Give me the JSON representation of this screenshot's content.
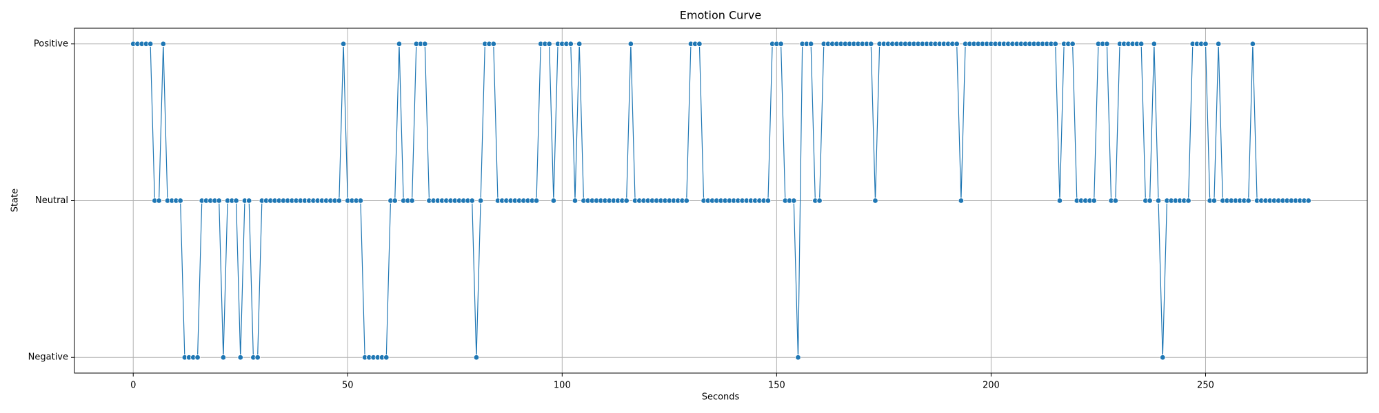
{
  "chart_data": {
    "type": "line",
    "title": "Emotion Curve",
    "x_label": "Seconds",
    "y_label": "State",
    "x": [
      0,
      1,
      2,
      3,
      4,
      5,
      6,
      7,
      8,
      9,
      10,
      11,
      12,
      13,
      14,
      15,
      16,
      17,
      18,
      19,
      20,
      21,
      22,
      23,
      24,
      25,
      26,
      27,
      28,
      29,
      30,
      31,
      32,
      33,
      34,
      35,
      36,
      37,
      38,
      39,
      40,
      41,
      42,
      43,
      44,
      45,
      46,
      47,
      48,
      49,
      50,
      51,
      52,
      53,
      54,
      55,
      56,
      57,
      58,
      59,
      60,
      61,
      62,
      63,
      64,
      65,
      66,
      67,
      68,
      69,
      70,
      71,
      72,
      73,
      74,
      75,
      76,
      77,
      78,
      79,
      80,
      81,
      82,
      83,
      84,
      85,
      86,
      87,
      88,
      89,
      90,
      91,
      92,
      93,
      94,
      95,
      96,
      97,
      98,
      99,
      100,
      101,
      102,
      103,
      104,
      105,
      106,
      107,
      108,
      109,
      110,
      111,
      112,
      113,
      114,
      115,
      116,
      117,
      118,
      119,
      120,
      121,
      122,
      123,
      124,
      125,
      126,
      127,
      128,
      129,
      130,
      131,
      132,
      133,
      134,
      135,
      136,
      137,
      138,
      139,
      140,
      141,
      142,
      143,
      144,
      145,
      146,
      147,
      148,
      149,
      150,
      151,
      152,
      153,
      154,
      155,
      156,
      157,
      158,
      159,
      160,
      161,
      162,
      163,
      164,
      165,
      166,
      167,
      168,
      169,
      170,
      171,
      172,
      173,
      174,
      175,
      176,
      177,
      178,
      179,
      180,
      181,
      182,
      183,
      184,
      185,
      186,
      187,
      188,
      189,
      190,
      191,
      192,
      193,
      194,
      195,
      196,
      197,
      198,
      199,
      200,
      201,
      202,
      203,
      204,
      205,
      206,
      207,
      208,
      209,
      210,
      211,
      212,
      213,
      214,
      215,
      216,
      217,
      218,
      219,
      220,
      221,
      222,
      223,
      224,
      225,
      226,
      227,
      228,
      229,
      230,
      231,
      232,
      233,
      234,
      235,
      236,
      237,
      238,
      239,
      240,
      241,
      242,
      243,
      244,
      245,
      246,
      247,
      248,
      249,
      250,
      251,
      252,
      253,
      254,
      255,
      256,
      257,
      258,
      259,
      260,
      261,
      262,
      263,
      264,
      265,
      266,
      267,
      268,
      269,
      270,
      271,
      272,
      273,
      274
    ],
    "series": [
      {
        "color": "#1f77b4",
        "values": [
          2,
          2,
          2,
          2,
          2,
          1,
          1,
          2,
          1,
          1,
          1,
          1,
          0,
          0,
          0,
          0,
          1,
          1,
          1,
          1,
          1,
          0,
          1,
          1,
          1,
          0,
          1,
          1,
          0,
          0,
          1,
          1,
          1,
          1,
          1,
          1,
          1,
          1,
          1,
          1,
          1,
          1,
          1,
          1,
          1,
          1,
          1,
          1,
          1,
          2,
          1,
          1,
          1,
          1,
          0,
          0,
          0,
          0,
          0,
          0,
          1,
          1,
          2,
          1,
          1,
          1,
          2,
          2,
          2,
          1,
          1,
          1,
          1,
          1,
          1,
          1,
          1,
          1,
          1,
          1,
          0,
          1,
          2,
          2,
          2,
          1,
          1,
          1,
          1,
          1,
          1,
          1,
          1,
          1,
          1,
          2,
          2,
          2,
          1,
          2,
          2,
          2,
          2,
          1,
          2,
          1,
          1,
          1,
          1,
          1,
          1,
          1,
          1,
          1,
          1,
          1,
          2,
          1,
          1,
          1,
          1,
          1,
          1,
          1,
          1,
          1,
          1,
          1,
          1,
          1,
          2,
          2,
          2,
          1,
          1,
          1,
          1,
          1,
          1,
          1,
          1,
          1,
          1,
          1,
          1,
          1,
          1,
          1,
          1,
          2,
          2,
          2,
          1,
          1,
          1,
          0,
          2,
          2,
          2,
          1,
          1,
          2,
          2,
          2,
          2,
          2,
          2,
          2,
          2,
          2,
          2,
          2,
          2,
          1,
          2,
          2,
          2,
          2,
          2,
          2,
          2,
          2,
          2,
          2,
          2,
          2,
          2,
          2,
          2,
          2,
          2,
          2,
          2,
          1,
          2,
          2,
          2,
          2,
          2,
          2,
          2,
          2,
          2,
          2,
          2,
          2,
          2,
          2,
          2,
          2,
          2,
          2,
          2,
          2,
          2,
          2,
          1,
          2,
          2,
          2,
          1,
          1,
          1,
          1,
          1,
          2,
          2,
          2,
          1,
          1,
          2,
          2,
          2,
          2,
          2,
          2,
          1,
          1,
          2,
          1,
          0,
          1,
          1,
          1,
          1,
          1,
          1,
          2,
          2,
          2,
          2,
          1,
          1,
          2,
          1,
          1,
          1,
          1,
          1,
          1,
          1,
          2,
          1,
          1,
          1,
          1,
          1,
          1,
          1,
          1,
          1,
          1,
          1,
          1,
          1
        ]
      }
    ],
    "xlim": [
      -13.7,
      287.7
    ],
    "xticks": [
      0,
      50,
      100,
      150,
      200,
      250
    ],
    "ylim": [
      -0.1,
      2.1
    ],
    "yticks": [
      {
        "value": 0,
        "label": "Negative"
      },
      {
        "value": 1,
        "label": "Neutral"
      },
      {
        "value": 2,
        "label": "Positive"
      }
    ],
    "grid": true
  }
}
